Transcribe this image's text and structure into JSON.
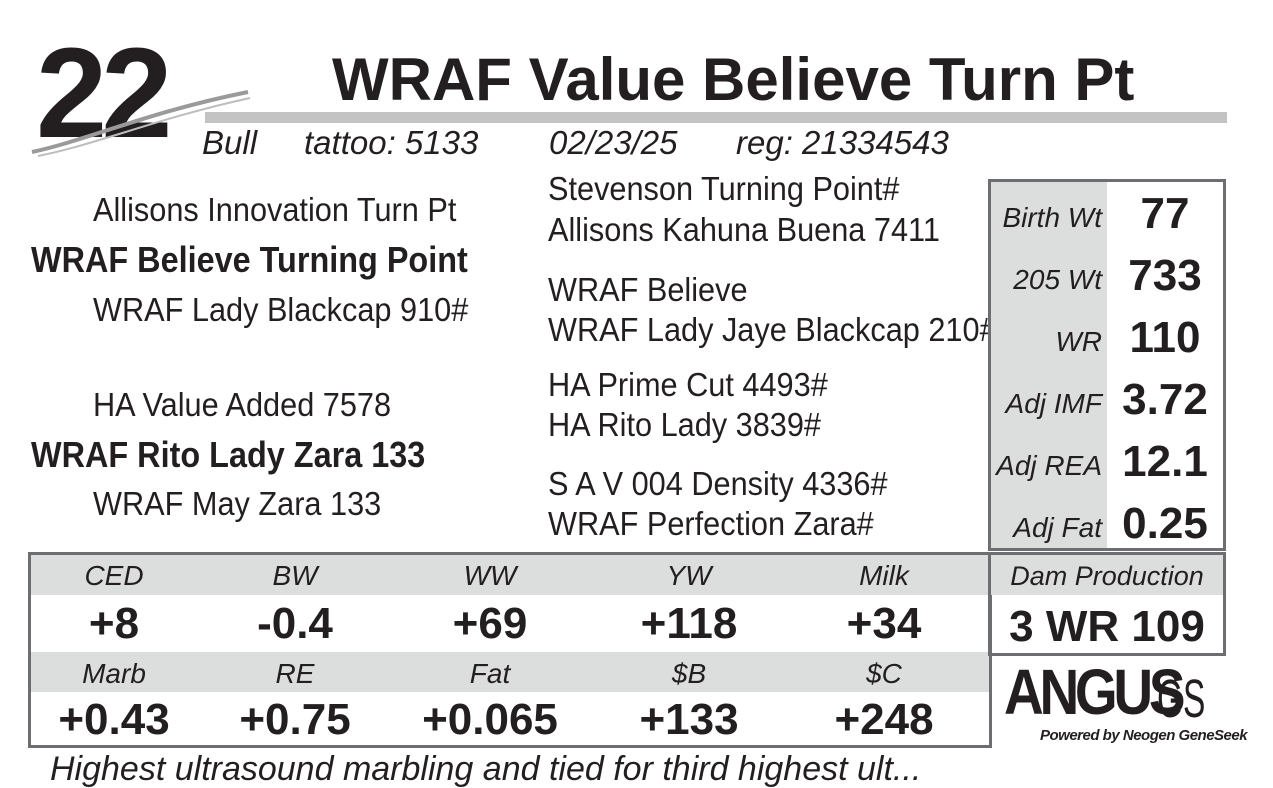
{
  "header": {
    "lot_number": "22",
    "name": "WRAF Value Believe Turn Pt",
    "sex": "Bull",
    "tattoo": "tattoo: 5133",
    "birth_date": "02/23/25",
    "registration": "reg: 21334543"
  },
  "pedigree": {
    "sire": "WRAF Believe Turning Point",
    "sire_sire": "Allisons Innovation Turn Pt",
    "sire_dam": "WRAF Lady Blackcap 910#",
    "sire_sire_sire": "Stevenson Turning Point#",
    "sire_sire_dam": "Allisons Kahuna Buena 7411",
    "sire_dam_sire": "WRAF Believe",
    "sire_dam_dam": "WRAF Lady Jaye Blackcap 210#",
    "dam": "WRAF Rito Lady Zara 133",
    "dam_sire": "HA Value Added 7578",
    "dam_dam": "WRAF May Zara 133",
    "dam_sire_sire": "HA Prime Cut 4493#",
    "dam_sire_dam": "HA Rito Lady 3839#",
    "dam_dam_sire": "S A V 004 Density 4336#",
    "dam_dam_dam": "WRAF Perfection Zara#"
  },
  "performance": [
    {
      "label": "Birth Wt",
      "value": "77"
    },
    {
      "label": "205 Wt",
      "value": "733"
    },
    {
      "label": "WR",
      "value": "110"
    },
    {
      "label": "Adj IMF",
      "value": "3.72"
    },
    {
      "label": "Adj REA",
      "value": "12.1"
    },
    {
      "label": "Adj Fat",
      "value": "0.25"
    }
  ],
  "epds_row1": [
    {
      "label": "CED",
      "value": "+8"
    },
    {
      "label": "BW",
      "value": "-0.4"
    },
    {
      "label": "WW",
      "value": "+69"
    },
    {
      "label": "YW",
      "value": "+118"
    },
    {
      "label": "Milk",
      "value": "+34"
    }
  ],
  "epds_row2": [
    {
      "label": "Marb",
      "value": "+0.43"
    },
    {
      "label": "RE",
      "value": "+0.75"
    },
    {
      "label": "Fat",
      "value": "+0.065"
    },
    {
      "label": "$B",
      "value": "+133"
    },
    {
      "label": "$C",
      "value": "+248"
    }
  ],
  "dam_production": {
    "label": "Dam Production",
    "value": "3 WR 109"
  },
  "logo": {
    "main": "ANGUS",
    "suffix": "GS",
    "tagline": "Powered by Neogen GeneSeek"
  },
  "footnote": "Highest ultrasound marbling and tied for third highest ult...",
  "colors": {
    "text": "#231f20",
    "shade": "#dcdddd",
    "border": "#6d6e71",
    "title_bar": "#c3c3c3"
  }
}
